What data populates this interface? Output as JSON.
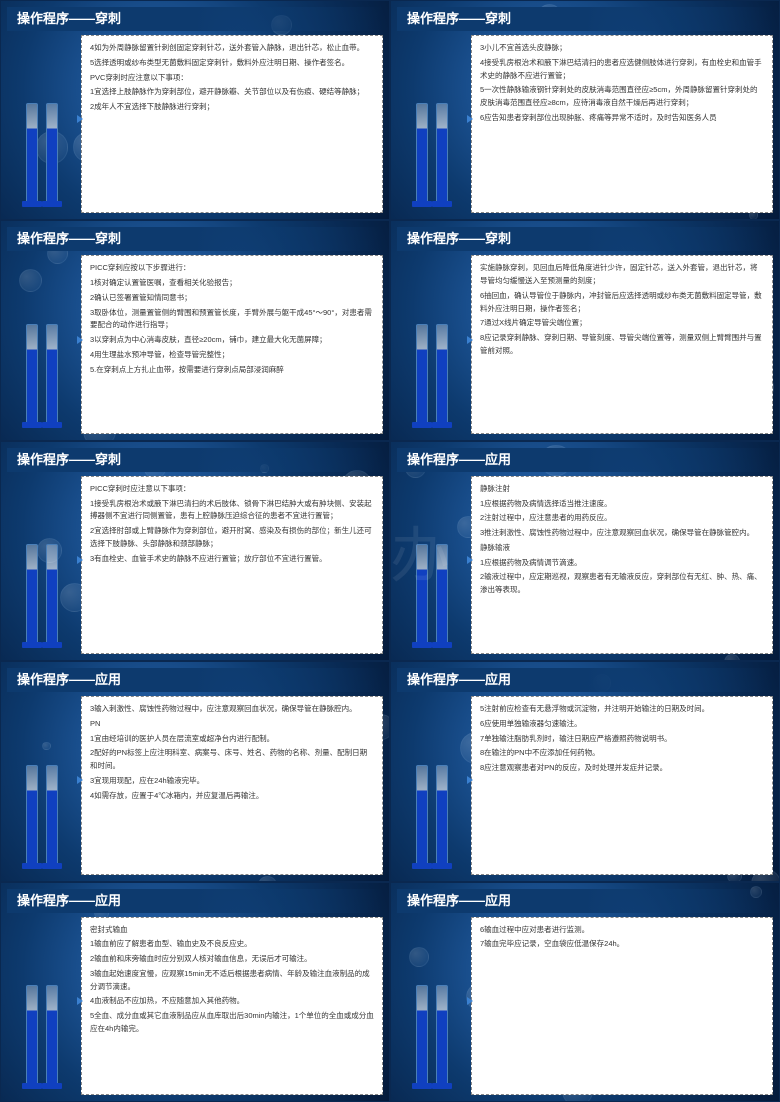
{
  "watermark_text": "熊猫办公",
  "slides": [
    {
      "title": "操作程序——穿刺",
      "lines": [
        "4如为外周静脉留置针刺创固定穿刺针芯，送外套管入静脉，退出针芯，松止血带。",
        "5选择透明或纱布类型无菌敷料固定穿刺针，敷料外应注明日期、操作者签名。",
        "PVC穿刺时应注意以下事项：",
        "1宜选择上肢静脉作为穿刺部位，避开静脉瓣、关节部位以及有伤痕、硬结等静脉；",
        "2成年人不宜选择下肢静脉进行穿刺；"
      ]
    },
    {
      "title": "操作程序——穿刺",
      "lines": [
        "3小儿不宜首选头皮静脉；",
        "4接受乳房根治术和腋下淋巴结清扫的患者应选健侧肢体进行穿刺，有血栓史和血管手术史的静脉不应进行置管；",
        "5一次性静脉输液钢针穿刺处的皮肤消毒范围直径应≥5cm，外周静脉留置针穿刺处的皮肤消毒范围直径应≥8cm，应待消毒液自然干燥后再进行穿刺；",
        "6应告知患者穿刺部位出现肿胀、疼痛等异常不适时，及时告知医务人员"
      ]
    },
    {
      "title": "操作程序——穿刺",
      "lines": [
        "PICC穿刺应按以下步骤进行：",
        "1核对确定认置管医嘱，查看相关化验报告；",
        "2确认已签署置管知情同意书；",
        "3取卧体位，测量置管侧的臂围和预置管长度，手臂外展与躯干成45°～90°，对患者需要配合的动作进行指导；",
        "3以穿刺点为中心消毒皮肤，直径≥20cm，铺巾，建立最大化无菌屏障；",
        "4用生理盐水预冲导管，检查导管完整性；",
        "5.在穿刺点上方扎止血带，按需要进行穿刺点局部浸润麻醉"
      ]
    },
    {
      "title": "操作程序——穿刺",
      "lines": [
        "实施静脉穿刺，见回血后降低角度进针少许，固定针芯，送入外套管，退出针芯，将导管均匀缓慢送入至预测量的刻度；",
        "6抽回血，确认导管位于静脉内，冲封管后应选择透明或纱布类无菌敷料固定导管，敷料外应注明日期，操作者签名；",
        "7通过X线片确定导管尖端位置；",
        "8应记录穿刺静脉、穿刺日期、导管刻度、导管尖端位置等，测量双侧上臂臂围并与置管前对照。"
      ]
    },
    {
      "title": "操作程序——穿刺",
      "lines": [
        "PICC穿刺时应注意以下事项：",
        "1接受乳房根治术或腋下淋巴清扫的术后肢体、锁骨下淋巴结肿大或有肿块侧、安装起搏器侧不宜进行同侧置管，患有上腔静脉压迫综合征的患者不宜进行置管；",
        "2宜选择肘部或上臂静脉作为穿刺部位，避开肘窝、感染及有损伤的部位；新生儿还可选择下肢静脉、头部静脉和颈部静脉；",
        "3有血栓史、血管手术史的静脉不应进行置管；放疗部位不宜进行置管。"
      ]
    },
    {
      "title": "操作程序——应用",
      "lines": [
        "静脉注射",
        "1应根据药物及病情选择适当推注速度。",
        "2注射过程中，应注意患者的用药反应。",
        "3推注刺激性、腐蚀性药物过程中，应注意观察回血状况，确保导管在静脉管腔内。",
        "静脉输液",
        "1应根据药物及病情调节滴速。",
        "2输液过程中，应定期巡视，观察患者有无输液反应，穿刺部位有无红、肿、热、痛、渗出等表现。"
      ]
    },
    {
      "title": "操作程序——应用",
      "lines": [
        "3输入刺激性、腐蚀性药物过程中，应注意观察回血状况，确保导管在静脉腔内。",
        "PN",
        "1宜由经培训的医护人员在层流室或超净台内进行配制。",
        "2配好的PN标签上应注明科室、病案号、床号、姓名、药物的名称、剂量、配制日期和时间。",
        "3宜现用现配，应在24h输液完毕。",
        "4如需存放，应置于4℃冰箱内，并应复温后再输注。"
      ]
    },
    {
      "title": "操作程序——应用",
      "lines": [
        "5注射前应检查有无悬浮物或沉淀物，并注明开始输注的日期及时间。",
        "6应使用单独输液器匀速输注。",
        "7单独输注脂肪乳剂时，输注日期应严格遵照药物说明书。",
        "8在输注的PN中不应添加任何药物。",
        "8应注意观察患者对PN的反应，及时处理并发症并记录。"
      ]
    },
    {
      "title": "操作程序——应用",
      "lines": [
        "密封式输血",
        "1输血前应了解患者血型、输血史及不良反应史。",
        "2输血前和床旁输血时应分别双人核对输血信息，无误后才可输注。",
        "3输血起始速度宜慢，应观察15min无不适后根据患者病情、年龄及输注血液制品的成分调节滴速。",
        "4血液制品不应加热，不应随意加入其他药物。",
        "5全血、成分血或其它血液制品应从血库取出后30min内输注，1个单位的全血或成分血应在4h内输完。"
      ]
    },
    {
      "title": "操作程序——应用",
      "lines": [
        "6输血过程中应对患者进行监测。",
        "7输血完毕应记录，空血袋应低温保存24h。"
      ]
    }
  ],
  "style": {
    "bg_gradient_colors": [
      "#1a5ba8",
      "#0a2f5c",
      "#041a3a"
    ],
    "header_bg": "#0d3a6e",
    "header_color": "#ffffff",
    "header_fontsize": 13,
    "textbox_bg": "#ffffff",
    "textbox_border": "#888888",
    "textbox_border_style": "dashed",
    "body_fontsize": 7.5,
    "body_color": "#333333",
    "tube_fill": "#1040c0",
    "tube_border": "#4a7fb8"
  }
}
